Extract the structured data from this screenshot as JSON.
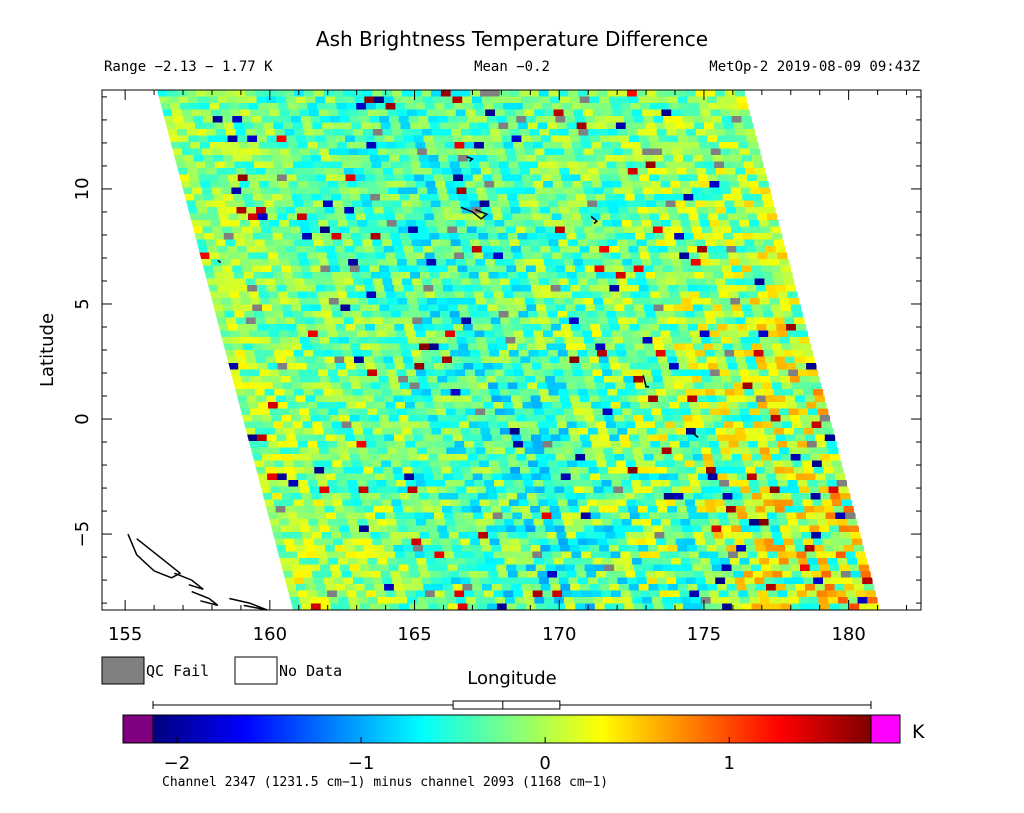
{
  "chart_data": {
    "type": "heatmap",
    "title": "Ash Brightness Temperature Difference",
    "header": {
      "range": "Range −2.13 − 1.77 K",
      "mean": "Mean −0.2",
      "satellite_time": "MetOp-2 2019-08-09 09:43Z"
    },
    "xlabel": "Longitude",
    "ylabel": "Latitude",
    "x_range": [
      154.2,
      182.5
    ],
    "y_range": [
      -8.3,
      14.3
    ],
    "x_ticks": [
      "155",
      "160",
      "165",
      "170",
      "175",
      "180"
    ],
    "x_tick_values": [
      155,
      160,
      165,
      170,
      175,
      180
    ],
    "y_ticks": [
      "10",
      "5",
      "0",
      "−5"
    ],
    "y_tick_values": [
      10,
      5,
      0,
      -5
    ],
    "swath_corners": {
      "top_left": [
        156.1,
        14.3
      ],
      "top_right": [
        176.4,
        14.3
      ],
      "bottom_left": [
        160.8,
        -8.3
      ],
      "bottom_right": [
        181.1,
        -8.3
      ]
    },
    "legend": {
      "qc_fail_label": "QC Fail",
      "no_data_label": "No Data",
      "qc_fail_color": "#808080",
      "no_data_color": "#ffffff"
    },
    "colorbar": {
      "range": [
        -2.13,
        1.77
      ],
      "ticks": [
        "−2",
        "−1",
        "0",
        "1"
      ],
      "tick_values": [
        -2,
        -1,
        0,
        1
      ],
      "unit": "K",
      "under_color": "#800080",
      "over_color": "#ff00ff",
      "colors": [
        "#000080",
        "#0000ff",
        "#0080ff",
        "#00ffff",
        "#80ff80",
        "#ffff00",
        "#ff8000",
        "#ff0000",
        "#800000"
      ],
      "boxplot": {
        "min": -2.13,
        "q1": -0.5,
        "median": -0.23,
        "q3": 0.08,
        "max": 1.77
      }
    },
    "footer_note": "Channel 2347 (1231.5 cm−1) minus channel 2093 (1168 cm−1)"
  }
}
